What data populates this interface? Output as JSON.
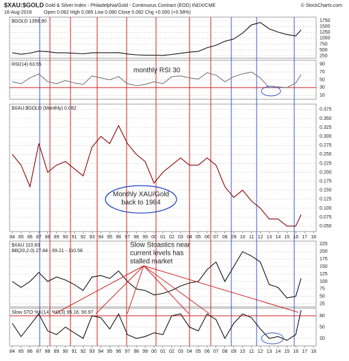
{
  "header": {
    "title": "$XAU:$GOLD",
    "subtitle": "Gold & Silver Index - Philadelphia/Gold - Continuous Contract (EOD) INDX/CME",
    "date": "16-Aug-2016",
    "quote": "Open 0.082 High 0.085 Low 0.080 Close 0.082 Chg +0.000 (+0.58%)",
    "source": "© StockCharts.com"
  },
  "chart_data": [
    {
      "type": "line",
      "label": "$GOLD 1356.90",
      "color": "#111111",
      "grid": true,
      "x": [
        1984,
        1985,
        1986,
        1987,
        1988,
        1989,
        1990,
        1991,
        1992,
        1993,
        1994,
        1995,
        1996,
        1997,
        1998,
        1999,
        2000,
        2001,
        2002,
        2003,
        2004,
        2005,
        2006,
        2007,
        2008,
        2009,
        2010,
        2011,
        2012,
        2013,
        2014,
        2015,
        2016,
        2016.6
      ],
      "series": [
        {
          "name": "$GOLD",
          "color": "#111111",
          "values": [
            380,
            320,
            370,
            450,
            430,
            380,
            380,
            360,
            340,
            380,
            385,
            385,
            390,
            330,
            295,
            280,
            280,
            270,
            310,
            360,
            410,
            440,
            600,
            700,
            870,
            970,
            1220,
            1570,
            1670,
            1400,
            1260,
            1160,
            1100,
            1356.9
          ]
        }
      ],
      "xlim": [
        1983.7,
        2018.3
      ],
      "ylim": [
        150,
        1900
      ],
      "yticks": [
        250,
        500,
        750,
        1000,
        1250,
        1500,
        1750
      ]
    },
    {
      "type": "line",
      "label": "RSI(14) 63.55",
      "annotation": [
        "monthly RSI 30"
      ],
      "color": "#777777",
      "grid": true,
      "reference": 30,
      "reference_color": "#cc2222",
      "x": [
        1984,
        1985,
        1986,
        1987,
        1988,
        1989,
        1990,
        1991,
        1992,
        1993,
        1994,
        1995,
        1996,
        1997,
        1998,
        1999,
        2000,
        2001,
        2002,
        2003,
        2004,
        2005,
        2006,
        2007,
        2008,
        2009,
        2010,
        2011,
        2012,
        2013,
        2014,
        2015,
        2016,
        2016.6
      ],
      "series": [
        {
          "name": "RSI(14)",
          "color": "#777777",
          "values": [
            45,
            40,
            55,
            65,
            45,
            40,
            48,
            42,
            38,
            60,
            55,
            50,
            58,
            40,
            35,
            38,
            45,
            40,
            58,
            60,
            55,
            52,
            68,
            62,
            45,
            58,
            65,
            70,
            55,
            30,
            32,
            30,
            42,
            63.55
          ]
        }
      ],
      "xlim": [
        1983.7,
        2018.3
      ],
      "ylim": [
        0,
        100
      ],
      "yticks": [
        10,
        30,
        50,
        70,
        90
      ]
    },
    {
      "type": "line",
      "label": "$XAU:$GOLD (Monthly) 0.082",
      "annotation": [
        "Monthly XAU/Gold",
        "back to 1984"
      ],
      "grid": true,
      "x": [
        1984,
        1985,
        1986,
        1987,
        1988,
        1989,
        1990,
        1991,
        1992,
        1993,
        1994,
        1995,
        1996,
        1997,
        1998,
        1999,
        2000,
        2001,
        2002,
        2003,
        2004,
        2005,
        2006,
        2007,
        2008,
        2009,
        2010,
        2011,
        2012,
        2013,
        2014,
        2015,
        2016,
        2016.6
      ],
      "series": [
        {
          "name": "$XAU:$GOLD",
          "color": "#8b0000",
          "values": [
            0.25,
            0.22,
            0.16,
            0.28,
            0.2,
            0.22,
            0.23,
            0.21,
            0.19,
            0.27,
            0.3,
            0.28,
            0.33,
            0.28,
            0.25,
            0.23,
            0.17,
            0.2,
            0.22,
            0.24,
            0.22,
            0.22,
            0.24,
            0.22,
            0.16,
            0.13,
            0.15,
            0.12,
            0.1,
            0.07,
            0.07,
            0.05,
            0.05,
            0.082
          ]
        }
      ],
      "xlim": [
        1983.7,
        2018.3
      ],
      "ylim": [
        0.035,
        0.39
      ],
      "yticks": [
        {
          "value": 0.05,
          "label": "0.050"
        },
        0.075,
        {
          "value": 0.1,
          "label": "0.100"
        },
        0.125,
        {
          "value": 0.15,
          "label": "0.150"
        },
        0.175,
        {
          "value": 0.2,
          "label": "0.200"
        },
        0.225,
        {
          "value": 0.25,
          "label": "0.250"
        },
        0.275,
        {
          "value": 0.3,
          "label": "0.300"
        },
        0.325,
        {
          "value": 0.35,
          "label": "0.350"
        },
        0.375
      ],
      "xticks": [
        {
          "value": 1984,
          "label": "84"
        },
        {
          "value": 1985,
          "label": "85"
        },
        {
          "value": 1986,
          "label": "86"
        },
        {
          "value": 1987,
          "label": "87"
        },
        {
          "value": 1988,
          "label": "88"
        },
        {
          "value": 1989,
          "label": "89"
        },
        {
          "value": 1990,
          "label": "90"
        },
        {
          "value": 1991,
          "label": "91"
        },
        {
          "value": 1992,
          "label": "92"
        },
        {
          "value": 1993,
          "label": "93"
        },
        {
          "value": 1994,
          "label": "94"
        },
        {
          "value": 1995,
          "label": "95"
        },
        {
          "value": 1996,
          "label": "96"
        },
        {
          "value": 1997,
          "label": "97"
        },
        {
          "value": 1998,
          "label": "98"
        },
        {
          "value": 1999,
          "label": "99"
        },
        {
          "value": 2000,
          "label": "00"
        },
        {
          "value": 2001,
          "label": "01"
        },
        {
          "value": 2002,
          "label": "02"
        },
        {
          "value": 2003,
          "label": "03"
        },
        {
          "value": 2004,
          "label": "04"
        },
        {
          "value": 2005,
          "label": "05"
        },
        {
          "value": 2006,
          "label": "06"
        },
        {
          "value": 2007,
          "label": "07"
        },
        {
          "value": 2008,
          "label": "08"
        },
        {
          "value": 2009,
          "label": "09"
        },
        {
          "value": 2010,
          "label": "10"
        },
        {
          "value": 2011,
          "label": "11"
        },
        {
          "value": 2012,
          "label": "12"
        },
        {
          "value": 2013,
          "label": "13"
        },
        {
          "value": 2014,
          "label": "14"
        },
        {
          "value": 2015,
          "label": "15"
        },
        {
          "value": 2016,
          "label": "16"
        },
        {
          "value": 2017,
          "label": "17"
        },
        {
          "value": 2018,
          "label": "18"
        }
      ]
    },
    {
      "type": "line",
      "label": "$XAU 110.83",
      "indicator": "BB(20,2.0) 27.84 - 69.21 - 110.58",
      "annotation": [
        "Slow Stoastics near",
        "current levels has",
        "stalled market"
      ],
      "grid": true,
      "x": [
        1984,
        1985,
        1986,
        1987,
        1988,
        1989,
        1990,
        1991,
        1992,
        1993,
        1994,
        1995,
        1996,
        1997,
        1998,
        1999,
        2000,
        2001,
        2002,
        2003,
        2004,
        2005,
        2006,
        2007,
        2008,
        2009,
        2010,
        2011,
        2012,
        2013,
        2014,
        2015,
        2016,
        2016.6
      ],
      "series": [
        {
          "name": "$XAU",
          "color": "#111111",
          "values": [
            100,
            80,
            100,
            130,
            100,
            115,
            105,
            90,
            70,
            115,
            120,
            110,
            135,
            100,
            75,
            70,
            55,
            60,
            70,
            85,
            95,
            100,
            140,
            165,
            100,
            150,
            200,
            185,
            165,
            90,
            80,
            45,
            50,
            110.83
          ]
        }
      ],
      "xlim": [
        1983.7,
        2018.3
      ],
      "ylim": [
        15,
        235
      ],
      "yticks": [
        25,
        50,
        75,
        100,
        125,
        150,
        175,
        200,
        225
      ]
    },
    {
      "type": "line",
      "label": "Slow STO %K(14) %D(3) 95.18, 90.97",
      "grid": true,
      "reference": 80,
      "reference_color": "#cc2222",
      "x": [
        1984,
        1985,
        1986,
        1987,
        1988,
        1989,
        1990,
        1991,
        1992,
        1993,
        1994,
        1995,
        1996,
        1997,
        1998,
        1999,
        2000,
        2001,
        2002,
        2003,
        2004,
        2005,
        2006,
        2007,
        2008,
        2009,
        2010,
        2011,
        2012,
        2013,
        2014,
        2015,
        2016,
        2016.6
      ],
      "series": [
        {
          "name": "%K",
          "color": "#111111",
          "values": [
            60,
            25,
            55,
            85,
            40,
            30,
            50,
            35,
            20,
            80,
            75,
            45,
            85,
            30,
            20,
            25,
            35,
            30,
            80,
            85,
            50,
            40,
            85,
            70,
            20,
            60,
            85,
            75,
            45,
            20,
            25,
            15,
            30,
            95.18
          ]
        }
      ],
      "xlim": [
        1983.7,
        2018.3
      ],
      "ylim": [
        0,
        100
      ],
      "yticks": [
        20,
        50,
        80
      ],
      "xticks": [
        {
          "value": 1984,
          "label": "84"
        },
        {
          "value": 1985,
          "label": "85"
        },
        {
          "value": 1986,
          "label": "86"
        },
        {
          "value": 1987,
          "label": "87"
        },
        {
          "value": 1988,
          "label": "88"
        },
        {
          "value": 1989,
          "label": "89"
        },
        {
          "value": 1990,
          "label": "90"
        },
        {
          "value": 1991,
          "label": "91"
        },
        {
          "value": 1992,
          "label": "92"
        },
        {
          "value": 1993,
          "label": "93"
        },
        {
          "value": 1994,
          "label": "94"
        },
        {
          "value": 1995,
          "label": "95"
        },
        {
          "value": 1996,
          "label": "96"
        },
        {
          "value": 1997,
          "label": "97"
        },
        {
          "value": 1998,
          "label": "98"
        },
        {
          "value": 1999,
          "label": "99"
        },
        {
          "value": 2000,
          "label": "00"
        },
        {
          "value": 2001,
          "label": "01"
        },
        {
          "value": 2002,
          "label": "02"
        },
        {
          "value": 2003,
          "label": "03"
        },
        {
          "value": 2004,
          "label": "04"
        },
        {
          "value": 2005,
          "label": "05"
        },
        {
          "value": 2006,
          "label": "06"
        },
        {
          "value": 2007,
          "label": "07"
        },
        {
          "value": 2008,
          "label": "08"
        },
        {
          "value": 2009,
          "label": "09"
        },
        {
          "value": 2010,
          "label": "10"
        },
        {
          "value": 2011,
          "label": "11"
        },
        {
          "value": 2012,
          "label": "12"
        },
        {
          "value": 2013,
          "label": "13"
        },
        {
          "value": 2014,
          "label": "14"
        },
        {
          "value": 2015,
          "label": "15"
        },
        {
          "value": 2016,
          "label": "16"
        },
        {
          "value": 2017,
          "label": "17"
        },
        {
          "value": 2018,
          "label": "18"
        }
      ]
    }
  ]
}
